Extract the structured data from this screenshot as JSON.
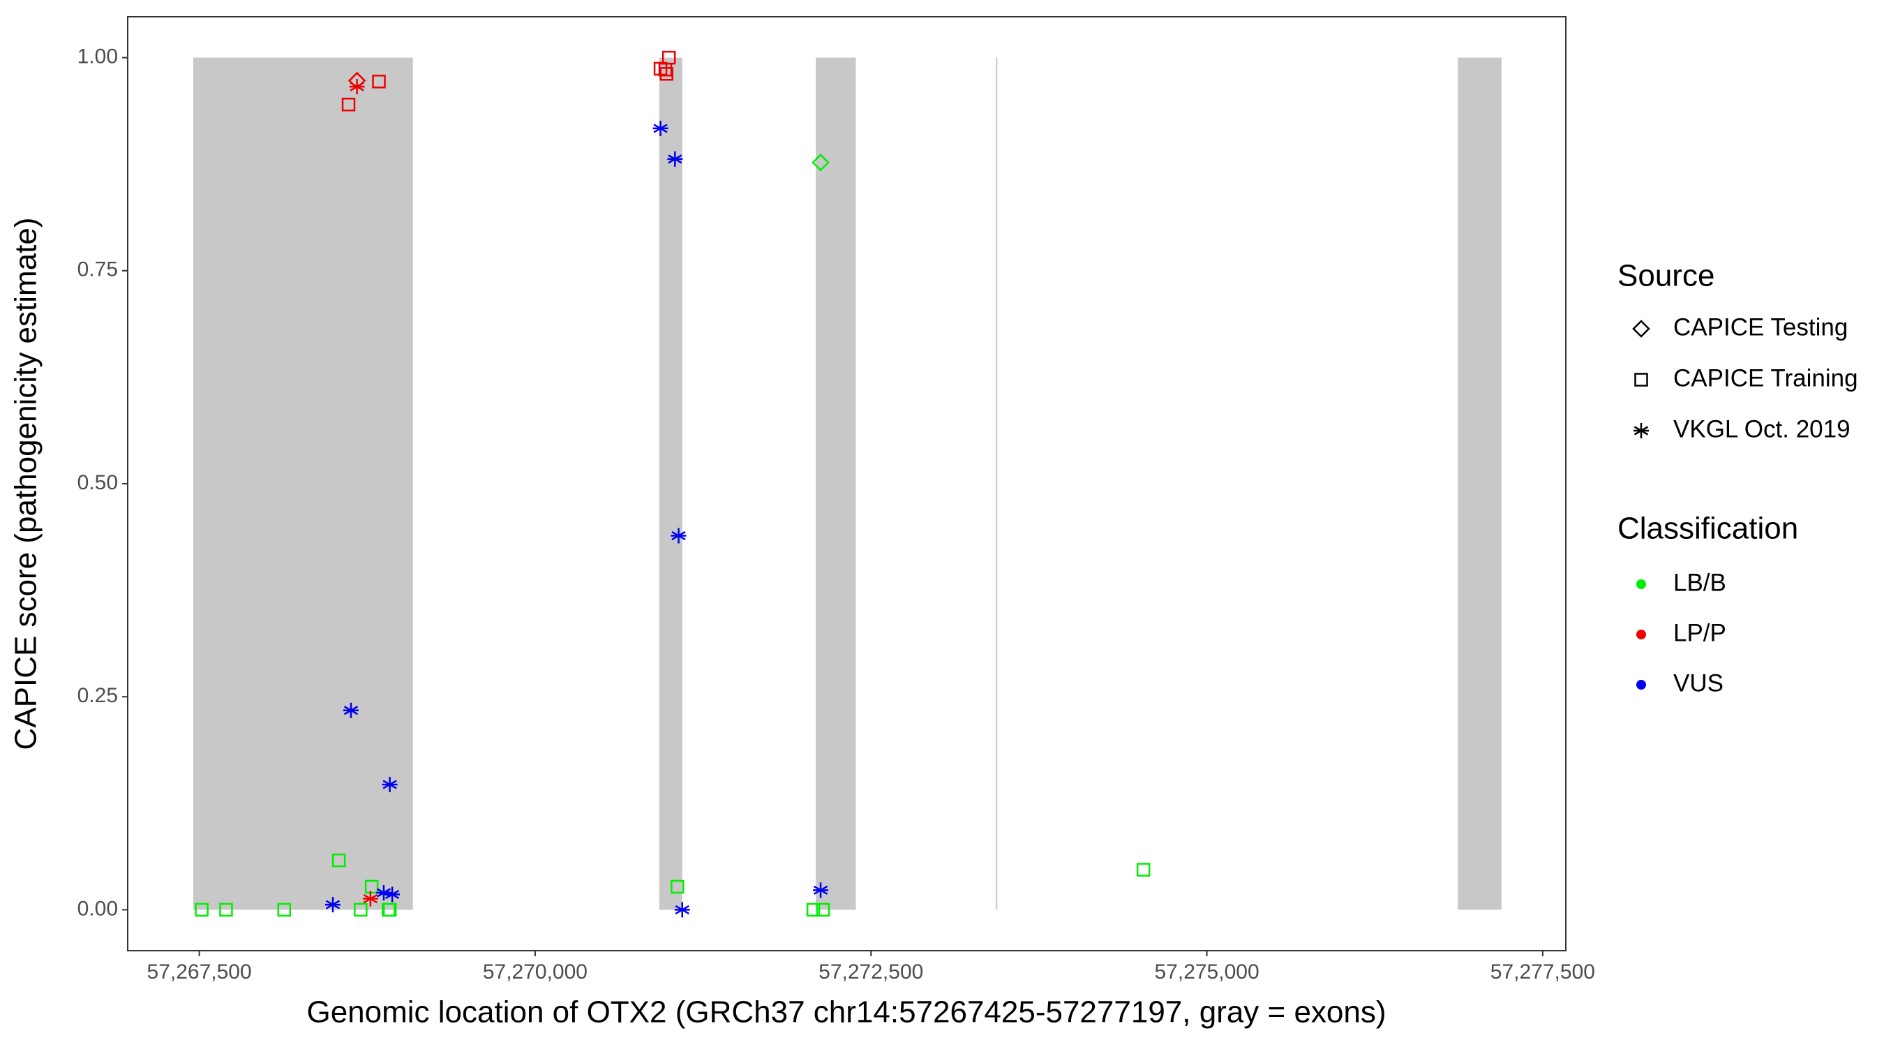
{
  "chart_data": {
    "type": "scatter",
    "xlabel": "Genomic location of OTX2 (GRCh37 chr14:57267425-57277197, gray = exons)",
    "ylabel": "CAPICE score (pathogenicity estimate)",
    "xlim": [
      57266967,
      57277672
    ],
    "ylim": [
      -0.048,
      1.048
    ],
    "xticks": [
      {
        "value": 57267500,
        "label": "57,267,500"
      },
      {
        "value": 57270000,
        "label": "57,270,000"
      },
      {
        "value": 57272500,
        "label": "57,272,500"
      },
      {
        "value": 57275000,
        "label": "57,275,000"
      },
      {
        "value": 57277500,
        "label": "57,277,500"
      }
    ],
    "yticks": [
      {
        "value": 0,
        "label": "0.00"
      },
      {
        "value": 0.25,
        "label": "0.25"
      },
      {
        "value": 0.5,
        "label": "0.50"
      },
      {
        "value": 0.75,
        "label": "0.75"
      },
      {
        "value": 1,
        "label": "1.00"
      }
    ],
    "exon_color": "#c8c8c8",
    "exons": [
      {
        "start": 57267455,
        "end": 57269090
      },
      {
        "start": 57270924,
        "end": 57271095
      },
      {
        "start": 57272089,
        "end": 57272387
      },
      {
        "start": 57273430,
        "end": 57273440
      },
      {
        "start": 57276868,
        "end": 57277193
      }
    ],
    "legend_source": {
      "title": "Source",
      "entries": [
        {
          "name": "CAPICE Testing",
          "shape": "diamond"
        },
        {
          "name": "CAPICE Training",
          "shape": "square"
        },
        {
          "name": "VKGL Oct. 2019",
          "shape": "star"
        }
      ]
    },
    "legend_class": {
      "title": "Classification",
      "entries": [
        {
          "name": "LB/B",
          "color": "#00ee00"
        },
        {
          "name": "LP/P",
          "color": "#ee0000"
        },
        {
          "name": "VUS",
          "color": "#0000ee"
        }
      ]
    },
    "series": [
      {
        "source": "CAPICE Training",
        "classification": "LB/B",
        "x": [
          57267518,
          57267699,
          57268132,
          57268539,
          57268701,
          57268783,
          57268909,
          57268918,
          57271059,
          57272071,
          57272143,
          57274528
        ],
        "y": [
          0.0,
          0.0,
          0.0,
          0.058,
          0.0,
          0.027,
          0.0,
          0.0,
          0.027,
          0.0,
          0.0,
          0.047
        ]
      },
      {
        "source": "CAPICE Testing",
        "classification": "LB/B",
        "x": [
          57272125
        ],
        "y": [
          0.877
        ]
      },
      {
        "source": "CAPICE Training",
        "classification": "LP/P",
        "x": [
          57268611,
          57268837,
          57270933,
          57270969,
          57270978,
          57270996
        ],
        "y": [
          0.945,
          0.972,
          0.987,
          0.986,
          0.981,
          1.0
        ]
      },
      {
        "source": "CAPICE Testing",
        "classification": "LP/P",
        "x": [
          57268674
        ],
        "y": [
          0.973
        ]
      },
      {
        "source": "VKGL Oct. 2019",
        "classification": "LP/P",
        "x": [
          57268674,
          57268774
        ],
        "y": [
          0.966,
          0.013
        ]
      },
      {
        "source": "VKGL Oct. 2019",
        "classification": "VUS",
        "x": [
          57270933,
          57271041,
          57271068,
          57271095,
          57268629,
          57268918,
          57268494,
          57268873,
          57268936,
          57272125
        ],
        "y": [
          0.917,
          0.881,
          0.439,
          0.0,
          0.234,
          0.147,
          0.006,
          0.02,
          0.018,
          0.023
        ]
      }
    ]
  }
}
